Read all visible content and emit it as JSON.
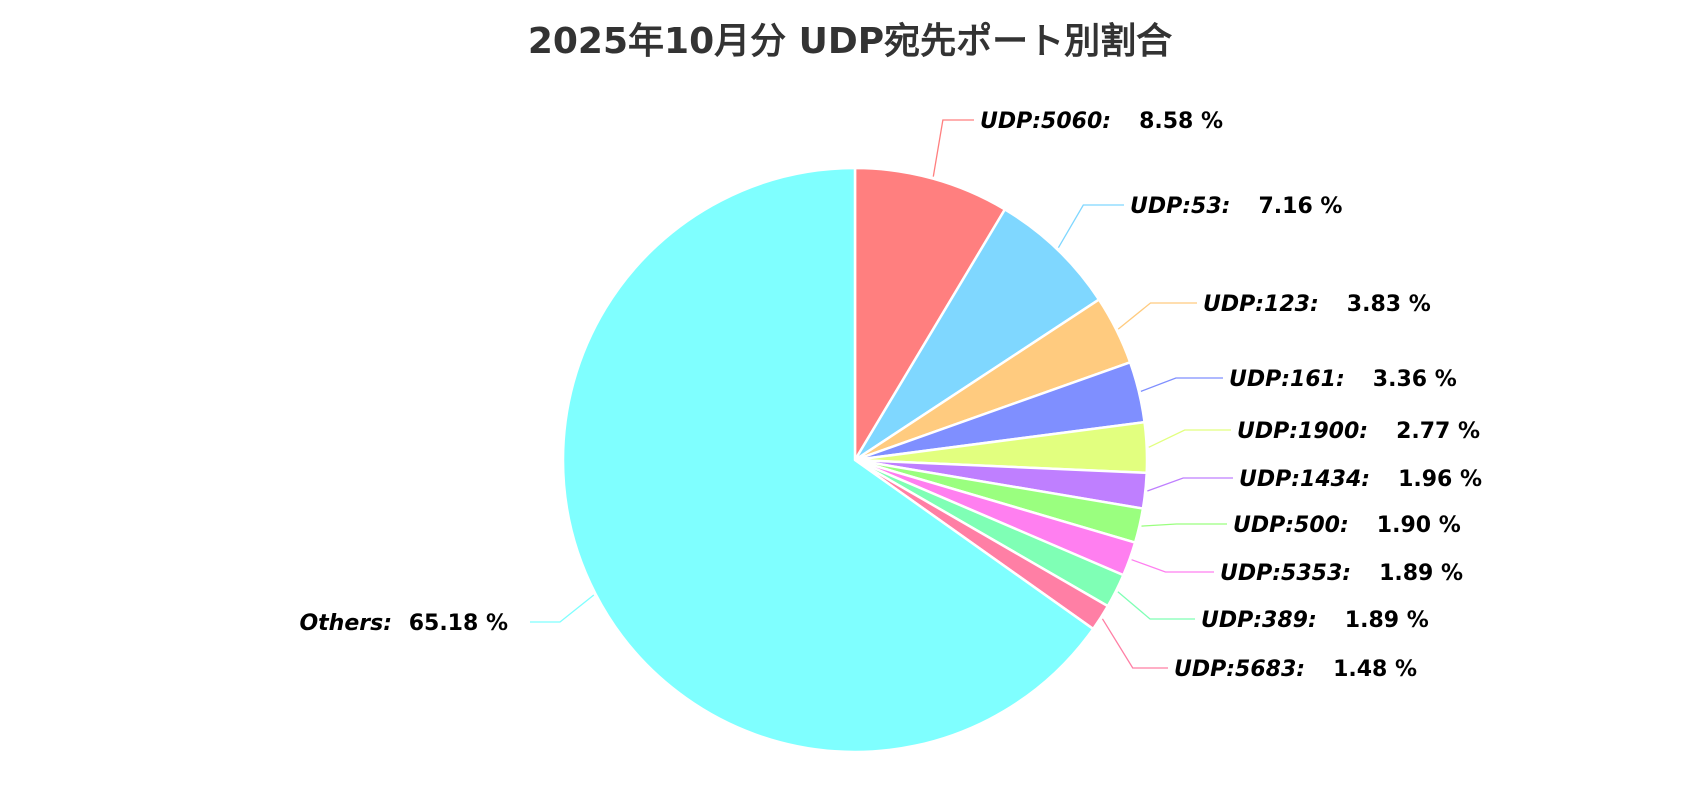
{
  "chart_data": {
    "type": "pie",
    "title": "2025年10月分 UDP宛先ポート別割合",
    "unit": "%",
    "slices": [
      {
        "label": "UDP:5060",
        "value": 8.58,
        "value_text": "8.58 %",
        "color": "#FF7F7F"
      },
      {
        "label": "UDP:53",
        "value": 7.16,
        "value_text": "7.16 %",
        "color": "#7FD7FF"
      },
      {
        "label": "UDP:123",
        "value": 3.83,
        "value_text": "3.83 %",
        "color": "#FFCB7F"
      },
      {
        "label": "UDP:161",
        "value": 3.36,
        "value_text": "3.36 %",
        "color": "#7F8FFF"
      },
      {
        "label": "UDP:1900",
        "value": 2.77,
        "value_text": "2.77 %",
        "color": "#E2FF7F"
      },
      {
        "label": "UDP:1434",
        "value": 1.96,
        "value_text": "1.96 %",
        "color": "#BF7FFF"
      },
      {
        "label": "UDP:500",
        "value": 1.9,
        "value_text": "1.90 %",
        "color": "#9AFF7F"
      },
      {
        "label": "UDP:5353",
        "value": 1.89,
        "value_text": "1.89 %",
        "color": "#FF7FF0"
      },
      {
        "label": "UDP:389",
        "value": 1.89,
        "value_text": "1.89 %",
        "color": "#7FFFB5"
      },
      {
        "label": "UDP:5683",
        "value": 1.48,
        "value_text": "1.48 %",
        "color": "#FF7FA5"
      },
      {
        "label": "Others",
        "value": 65.18,
        "value_text": "65.18 %",
        "color": "#7FFFFF"
      }
    ]
  }
}
